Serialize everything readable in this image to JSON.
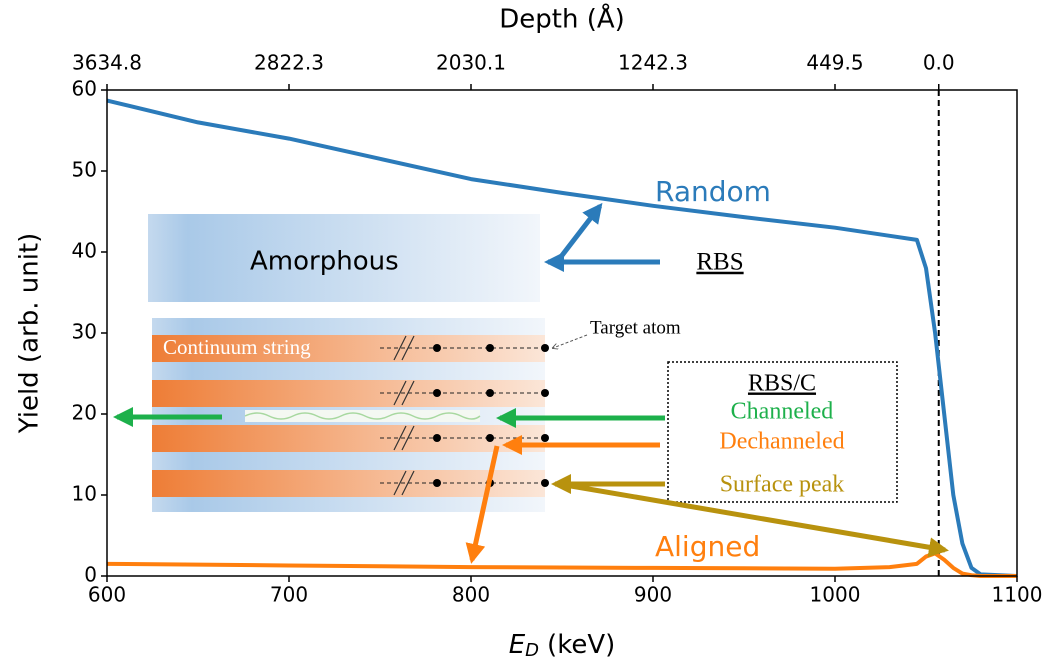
{
  "chart_data": {
    "type": "line",
    "xlabel": {
      "symbol": "E",
      "subscript": "D",
      "unit": "(keV)"
    },
    "ylabel": "Yield (arb. unit)",
    "x2label": "Depth (Å)",
    "x": [
      600,
      650,
      700,
      750,
      800,
      850,
      900,
      950,
      1000,
      1030,
      1045,
      1050,
      1055,
      1060,
      1065,
      1070,
      1075,
      1080,
      1100
    ],
    "series": [
      {
        "name": "Random",
        "color": "#2b7bba",
        "values": [
          58.7,
          56,
          54,
          51.5,
          49,
          47.3,
          45.7,
          44.3,
          43,
          42,
          41.5,
          38,
          30,
          20,
          10,
          4,
          1,
          0.2,
          0
        ]
      },
      {
        "name": "Aligned",
        "color": "#ff7f0e",
        "values": [
          1.5,
          1.4,
          1.3,
          1.2,
          1.1,
          1.05,
          1.0,
          0.95,
          0.9,
          1.1,
          1.5,
          2.4,
          2.8,
          2.0,
          1.0,
          0.3,
          0.1,
          0.0,
          0
        ]
      }
    ],
    "xlim": [
      600,
      1100
    ],
    "ylim": [
      0,
      60
    ],
    "xticks": [
      600,
      700,
      800,
      900,
      1000,
      1100
    ],
    "yticks": [
      0,
      10,
      20,
      30,
      40,
      50,
      60
    ],
    "x2ticks": [
      {
        "value": 600,
        "label": "3634.8"
      },
      {
        "value": 700,
        "label": "2822.3"
      },
      {
        "value": 800,
        "label": "2030.1"
      },
      {
        "value": 900,
        "label": "1242.3"
      },
      {
        "value": 1000,
        "label": "449.5"
      },
      {
        "value": 1057,
        "label": "0.0"
      }
    ],
    "vline": 1057,
    "annotations": [
      "Amorphous",
      "Continuum string",
      "Target atom",
      "RBS",
      "RBS/C",
      "Channeled",
      "Dechanneled",
      "Surface peak"
    ]
  }
}
